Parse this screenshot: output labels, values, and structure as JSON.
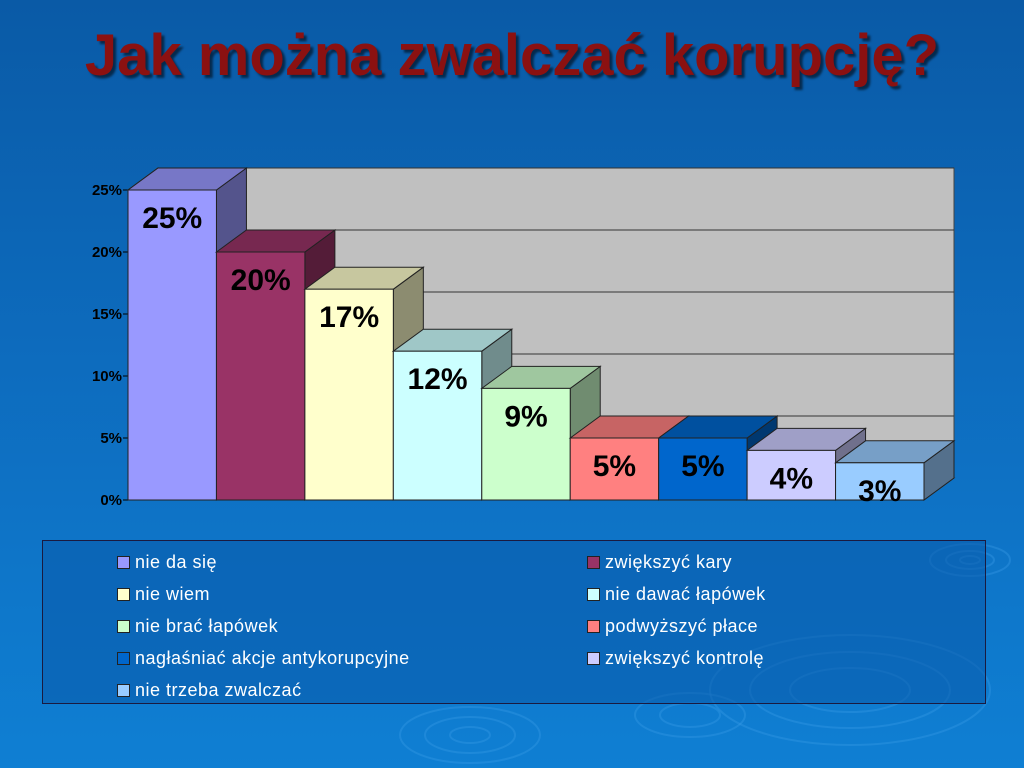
{
  "title": "Jak można zwalczać korupcję?",
  "chart_data": {
    "type": "bar",
    "categories": [
      "nie da się",
      "zwiększyć kary",
      "nie wiem",
      "nie dawać łapówek",
      "nie brać łapówek",
      "podwyższyć płace",
      "nagłaśniać akcje antykorupcyjne",
      "zwiększyć kontrolę",
      "nie trzeba zwalczać"
    ],
    "values": [
      25,
      20,
      17,
      12,
      9,
      5,
      5,
      4,
      3
    ],
    "data_labels": [
      "25%",
      "20%",
      "17%",
      "12%",
      "9%",
      "5%",
      "5%",
      "4%",
      "3%"
    ],
    "colors": [
      "#9999ff",
      "#993366",
      "#ffffcc",
      "#ccffff",
      "#ccffcc",
      "#ff8080",
      "#0066cc",
      "#ccccff",
      "#99ccff"
    ],
    "y_ticks": [
      "0%",
      "5%",
      "10%",
      "15%",
      "20%",
      "25%"
    ],
    "ylim": [
      0,
      25
    ],
    "grid": true,
    "three_d": true,
    "legend_position": "bottom"
  }
}
